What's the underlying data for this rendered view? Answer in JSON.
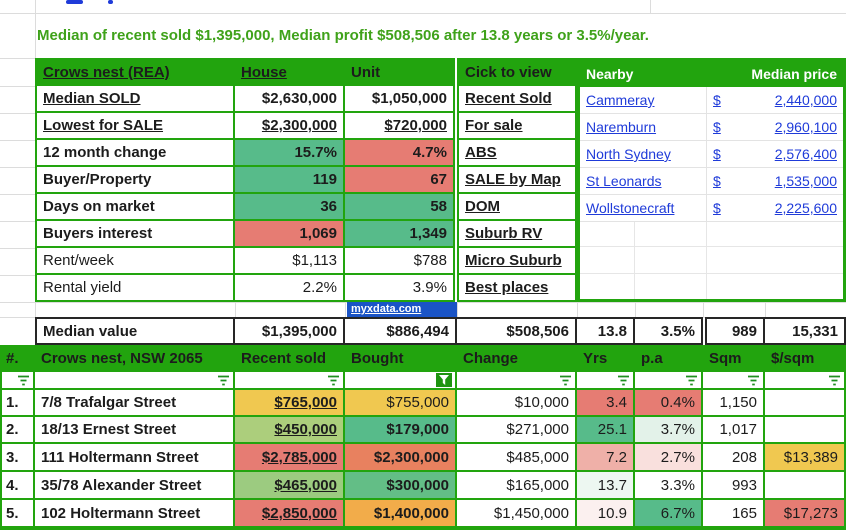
{
  "palette": {
    "green": "#22A40E",
    "link_blue": "#1F3BD9",
    "row_num_blue": "#3434D6",
    "street_green": "#108A0C",
    "label_red": "#FF0000",
    "summary_green": "#3FA21A",
    "bar_blue": "#1A54C6",
    "fill_green": "#57BB8A",
    "fill_red": "#E67C73",
    "fill_gold": "#F0C850"
  },
  "summary": {
    "text": "Median of recent sold $1,395,000, Median profit $508,506 after 13.8 years or 3.5%/year."
  },
  "stats_table": {
    "title": "Crows nest (REA)",
    "col_house": "House",
    "col_unit": "Unit",
    "rows": [
      {
        "label": "Median SOLD",
        "house": "$2,630,000",
        "unit": "$1,050,000"
      },
      {
        "label": "Lowest for SALE",
        "house": "$2,300,000",
        "unit": "$720,000"
      },
      {
        "label": "12 month change",
        "house": "15.7%",
        "unit": "4.7%",
        "house_fill": "#57BB8A",
        "unit_fill": "#E67C73"
      },
      {
        "label": "Buyer/Property",
        "house": "119",
        "unit": "67",
        "house_fill": "#57BB8A",
        "unit_fill": "#E67C73"
      },
      {
        "label": "Days on market",
        "house": "36",
        "unit": "58",
        "house_fill": "#57BB8A",
        "unit_fill": "#57BB8A"
      },
      {
        "label": "Buyers interest",
        "house": "1,069",
        "unit": "1,349",
        "house_fill": "#E67C73",
        "unit_fill": "#57BB8A"
      },
      {
        "label": "Rent/week",
        "house": "$1,113",
        "unit": "$788"
      },
      {
        "label": "Rental yield",
        "house": "2.2%",
        "unit": "3.9%"
      }
    ]
  },
  "click_to_view": {
    "header": "Cick to view",
    "links": [
      "Recent Sold",
      "For sale",
      "ABS",
      "SALE by Map",
      "DOM",
      "Suburb RV",
      "Micro Suburb",
      "Best places"
    ]
  },
  "nearby": {
    "header": "Nearby",
    "price_header": "Median price",
    "rows": [
      {
        "name": "Cammeray",
        "currency": "$",
        "price": "2,440,000"
      },
      {
        "name": "Naremburn",
        "currency": "$",
        "price": "2,960,100"
      },
      {
        "name": "North Sydney",
        "currency": "$",
        "price": "2,576,400"
      },
      {
        "name": "St Leonards",
        "currency": "$",
        "price": "1,535,000"
      },
      {
        "name": "Wollstonecraft",
        "currency": "$",
        "price": "2,225,600"
      }
    ]
  },
  "myxdata": {
    "label": "myxdata.com"
  },
  "median_row": {
    "label": "Median value",
    "recent_sold": "$1,395,000",
    "bought": "$886,494",
    "change": "$508,506",
    "yrs": "13.8",
    "pa": "3.5%",
    "sqm": "989",
    "per_sqm": "15,331"
  },
  "sold_table": {
    "headers": {
      "num": "#.",
      "address": "Crows nest, NSW 2065",
      "recent_sold": "Recent sold",
      "bought": "Bought",
      "change": "Change",
      "yrs": "Yrs",
      "pa": "p.a",
      "sqm": "Sqm",
      "per_sqm": "$/sqm"
    },
    "rows": [
      {
        "num": "1.",
        "address": "7/8 Trafalgar Street",
        "recent_sold": "$765,000",
        "recent_sold_fill": "#F0C850",
        "bought": "$755,000",
        "bought_fill": "#F0C850",
        "change": "$10,000",
        "yrs": "3.4",
        "yrs_fill": "#E67C73",
        "pa": "0.4%",
        "pa_fill": "#E67C73",
        "sqm": "1,150",
        "per_sqm": ""
      },
      {
        "num": "2.",
        "address": "18/13 Ernest Street",
        "recent_sold": "$450,000",
        "recent_sold_fill": "#ACCE7C",
        "bought": "$179,000",
        "bought_fill": "#57BB8A",
        "change": "$271,000",
        "yrs": "25.1",
        "yrs_fill": "#57BB8A",
        "pa": "3.7%",
        "pa_fill": "#E3F2E9",
        "sqm": "1,017",
        "per_sqm": ""
      },
      {
        "num": "3.",
        "address": "111 Holtermann Street",
        "recent_sold": "$2,785,000",
        "recent_sold_fill": "#E67C73",
        "bought": "$2,300,000",
        "bought_fill": "#E8815F",
        "change": "$485,000",
        "yrs": "7.2",
        "yrs_fill": "#EFB0A8",
        "pa": "2.7%",
        "pa_fill": "#F9E0DD",
        "sqm": "208",
        "per_sqm": "$13,389",
        "per_sqm_fill": "#F0C850"
      },
      {
        "num": "4.",
        "address": "35/78 Alexander Street",
        "recent_sold": "$465,000",
        "recent_sold_fill": "#9CCB80",
        "bought": "$300,000",
        "bought_fill": "#63BE86",
        "change": "$165,000",
        "yrs": "13.7",
        "yrs_fill": "#EDF7F1",
        "pa": "3.3%",
        "sqm": "993",
        "per_sqm": ""
      },
      {
        "num": "5.",
        "address": "102 Holtermann Street",
        "recent_sold": "$2,850,000",
        "recent_sold_fill": "#E67C73",
        "bought": "$1,400,000",
        "bought_fill": "#F2AC4A",
        "change": "$1,450,000",
        "yrs": "10.9",
        "yrs_fill": "#FBF0EF",
        "pa": "6.7%",
        "pa_fill": "#57BB8A",
        "sqm": "165",
        "per_sqm": "$17,273",
        "per_sqm_fill": "#E67C73"
      }
    ],
    "partial_row": {
      "recent_sold_fill": "#E67C73",
      "bought_fill": "#F0C850"
    }
  }
}
